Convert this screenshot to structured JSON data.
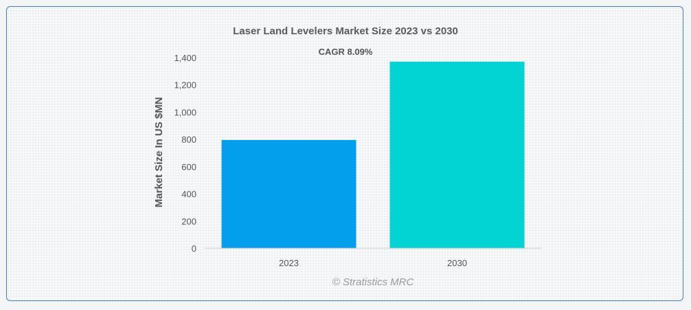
{
  "chart_data": {
    "type": "bar",
    "title": "Laser Land Levelers Market Size 2023 vs 2030",
    "annotation": "CAGR 8.09%",
    "xlabel": "",
    "ylabel": "Market Size In US $MN",
    "categories": [
      "2023",
      "2030"
    ],
    "values": [
      795,
      1370
    ],
    "ylim": [
      0,
      1400
    ],
    "yticks": [
      0,
      200,
      400,
      600,
      800,
      1000,
      1200,
      1400
    ],
    "ytick_labels": [
      "0",
      "200",
      "400",
      "600",
      "800",
      "1,000",
      "1,200",
      "1,400"
    ],
    "colors": [
      "#049fec",
      "#02d4d4"
    ],
    "grid": false,
    "legend": "none"
  },
  "credit": "© Stratistics MRC"
}
